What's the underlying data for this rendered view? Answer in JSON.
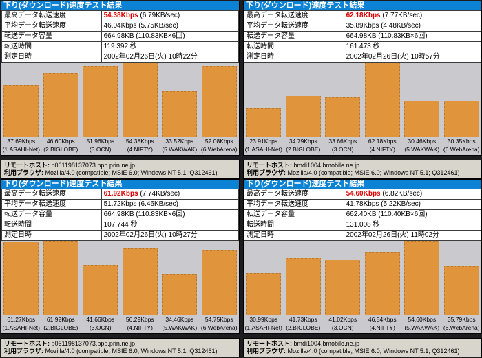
{
  "colors": {
    "title_bg": "#0c82d4",
    "highlight": "#dd0000",
    "bar": "#e0953d",
    "chart_bg": "#cac9ce",
    "info_bg": "#d8d5cd"
  },
  "labels": {
    "remote_host_label": "リモートホスト:",
    "browser_label": "利用ブラウザ:"
  },
  "row_labels": [
    "最高データ転送速度",
    "平均データ転送速度",
    "転送データ容量",
    "転送時間",
    "測定日時"
  ],
  "quadrants": [
    {
      "title": "下り(ダウンロード)速度テスト結果",
      "rows": [
        {
          "highlight": "54.38Kbps",
          "text": " (6.79KB/sec)"
        },
        {
          "highlight": "",
          "text": "46.04Kbps (5.75KB/sec)"
        },
        {
          "highlight": "",
          "text": "664.98KB (110.83KB×6回)"
        },
        {
          "highlight": "",
          "text": "119.392 秒"
        },
        {
          "highlight": "",
          "text": "2002年02月26日(火) 10時22分"
        }
      ],
      "bars": [
        {
          "value": 37.69,
          "value_label": "37.69Kbps",
          "name_label": "(1.ASAHI-Net)"
        },
        {
          "value": 46.6,
          "value_label": "46.60Kbps",
          "name_label": "(2.BIGLOBE)"
        },
        {
          "value": 51.96,
          "value_label": "51.96Kbps",
          "name_label": "(3.OCN)"
        },
        {
          "value": 54.38,
          "value_label": "54.38Kbps",
          "name_label": "(4.NIFTY)"
        },
        {
          "value": 33.52,
          "value_label": "33.52Kbps",
          "name_label": "(5.WAKWAK)"
        },
        {
          "value": 52.08,
          "value_label": "52.08Kbps",
          "name_label": "(6.WebArena)"
        }
      ],
      "remote_host": "p061198137073.ppp.prin.ne.jp",
      "browser": "Mozilla/4.0 (compatible; MSIE 6.0; Windows NT 5.1; Q312461)"
    },
    {
      "title": "下り(ダウンロード)速度テスト結果",
      "rows": [
        {
          "highlight": "62.18Kbps",
          "text": " (7.77KB/sec)"
        },
        {
          "highlight": "",
          "text": "35.89Kbps (4.48KB/sec)"
        },
        {
          "highlight": "",
          "text": "664.98KB (110.83KB×6回)"
        },
        {
          "highlight": "",
          "text": "161.473 秒"
        },
        {
          "highlight": "",
          "text": "2002年02月26日(火) 10時57分"
        }
      ],
      "bars": [
        {
          "value": 23.91,
          "value_label": "23.91Kbps",
          "name_label": "(1.ASAHI-Net)"
        },
        {
          "value": 34.79,
          "value_label": "34.79Kbps",
          "name_label": "(2.BIGLOBE)"
        },
        {
          "value": 33.66,
          "value_label": "33.66Kbps",
          "name_label": "(3.OCN)"
        },
        {
          "value": 62.18,
          "value_label": "62.18Kbps",
          "name_label": "(4.NIFTY)"
        },
        {
          "value": 30.46,
          "value_label": "30.46Kbps",
          "name_label": "(5.WAKWAK)"
        },
        {
          "value": 30.35,
          "value_label": "30.35Kbps",
          "name_label": "(6.WebArena)"
        }
      ],
      "remote_host": "bmdi1004.bmobile.ne.jp",
      "browser": "Mozilla/4.0 (compatible; MSIE 6.0; Windows NT 5.1; Q312461)"
    },
    {
      "title": "下り(ダウンロード)速度テスト結果",
      "rows": [
        {
          "highlight": "61.92Kbps",
          "text": " (7.74KB/sec)"
        },
        {
          "highlight": "",
          "text": "51.72Kbps (6.46KB/sec)"
        },
        {
          "highlight": "",
          "text": "664.98KB (110.83KB×6回)"
        },
        {
          "highlight": "",
          "text": "107.744 秒"
        },
        {
          "highlight": "",
          "text": "2002年02月26日(火) 10時27分"
        }
      ],
      "bars": [
        {
          "value": 61.27,
          "value_label": "61.27Kbps",
          "name_label": "(1.ASAHI-Net)"
        },
        {
          "value": 61.92,
          "value_label": "61.92Kbps",
          "name_label": "(2.BIGLOBE)"
        },
        {
          "value": 41.66,
          "value_label": "41.66Kbps",
          "name_label": "(3.OCN)"
        },
        {
          "value": 56.29,
          "value_label": "56.29Kbps",
          "name_label": "(4.NIFTY)"
        },
        {
          "value": 34.46,
          "value_label": "34.46Kbps",
          "name_label": "(5.WAKWAK)"
        },
        {
          "value": 54.75,
          "value_label": "54.75Kbps",
          "name_label": "(6.WebArena)"
        }
      ],
      "remote_host": "p061198137073.ppp.prin.ne.jp",
      "browser": "Mozilla/4.0 (compatible; MSIE 6.0; Windows NT 5.1; Q312461)"
    },
    {
      "title": "下り(ダウンロード)速度テスト結果",
      "rows": [
        {
          "highlight": "54.60Kbps",
          "text": " (6.82KB/sec)"
        },
        {
          "highlight": "",
          "text": "41.78Kbps (5.22KB/sec)"
        },
        {
          "highlight": "",
          "text": "662.40KB (110.40KB×6回)"
        },
        {
          "highlight": "",
          "text": "131.008 秒"
        },
        {
          "highlight": "",
          "text": "2002年02月26日(火) 11時02分"
        }
      ],
      "bars": [
        {
          "value": 30.99,
          "value_label": "30.99Kbps",
          "name_label": "(1.ASAHI-Net)"
        },
        {
          "value": 41.73,
          "value_label": "41.73Kbps",
          "name_label": "(2.BIGLOBE)"
        },
        {
          "value": 41.02,
          "value_label": "41.02Kbps",
          "name_label": "(3.OCN)"
        },
        {
          "value": 46.54,
          "value_label": "46.54Kbps",
          "name_label": "(4.NIFTY)"
        },
        {
          "value": 54.6,
          "value_label": "54.60Kbps",
          "name_label": "(5.WAKWAK)"
        },
        {
          "value": 35.79,
          "value_label": "35.79Kbps",
          "name_label": "(6.WebArena)"
        }
      ],
      "remote_host": "bmdi1004.bmobile.ne.jp",
      "browser": "Mozilla/4.0 (compatible; MSIE 6.0; Windows NT 5.1; Q312461)"
    }
  ],
  "chart_data": [
    {
      "type": "bar",
      "position": "top-left",
      "title": "下り(ダウンロード)速度テスト結果",
      "categories": [
        "1.ASAHI-Net",
        "2.BIGLOBE",
        "3.OCN",
        "4.NIFTY",
        "5.WAKWAK",
        "6.WebArena"
      ],
      "values": [
        37.69,
        46.6,
        51.96,
        54.38,
        33.52,
        52.08
      ],
      "unit": "Kbps",
      "xlabel": "",
      "ylabel": "",
      "ylim": [
        0,
        54.38
      ],
      "grid": false,
      "legend": false
    },
    {
      "type": "bar",
      "position": "top-right",
      "title": "下り(ダウンロード)速度テスト結果",
      "categories": [
        "1.ASAHI-Net",
        "2.BIGLOBE",
        "3.OCN",
        "4.NIFTY",
        "5.WAKWAK",
        "6.WebArena"
      ],
      "values": [
        23.91,
        34.79,
        33.66,
        62.18,
        30.46,
        30.35
      ],
      "unit": "Kbps",
      "xlabel": "",
      "ylabel": "",
      "ylim": [
        0,
        62.18
      ],
      "grid": false,
      "legend": false
    },
    {
      "type": "bar",
      "position": "bottom-left",
      "title": "下り(ダウンロード)速度テスト結果",
      "categories": [
        "1.ASAHI-Net",
        "2.BIGLOBE",
        "3.OCN",
        "4.NIFTY",
        "5.WAKWAK",
        "6.WebArena"
      ],
      "values": [
        61.27,
        61.92,
        41.66,
        56.29,
        34.46,
        54.75
      ],
      "unit": "Kbps",
      "xlabel": "",
      "ylabel": "",
      "ylim": [
        0,
        61.92
      ],
      "grid": false,
      "legend": false
    },
    {
      "type": "bar",
      "position": "bottom-right",
      "title": "下り(ダウンロード)速度テスト結果",
      "categories": [
        "1.ASAHI-Net",
        "2.BIGLOBE",
        "3.OCN",
        "4.NIFTY",
        "5.WAKWAK",
        "6.WebArena"
      ],
      "values": [
        30.99,
        41.73,
        41.02,
        46.54,
        54.6,
        35.79
      ],
      "unit": "Kbps",
      "xlabel": "",
      "ylabel": "",
      "ylim": [
        0,
        54.6
      ],
      "grid": false,
      "legend": false
    }
  ]
}
